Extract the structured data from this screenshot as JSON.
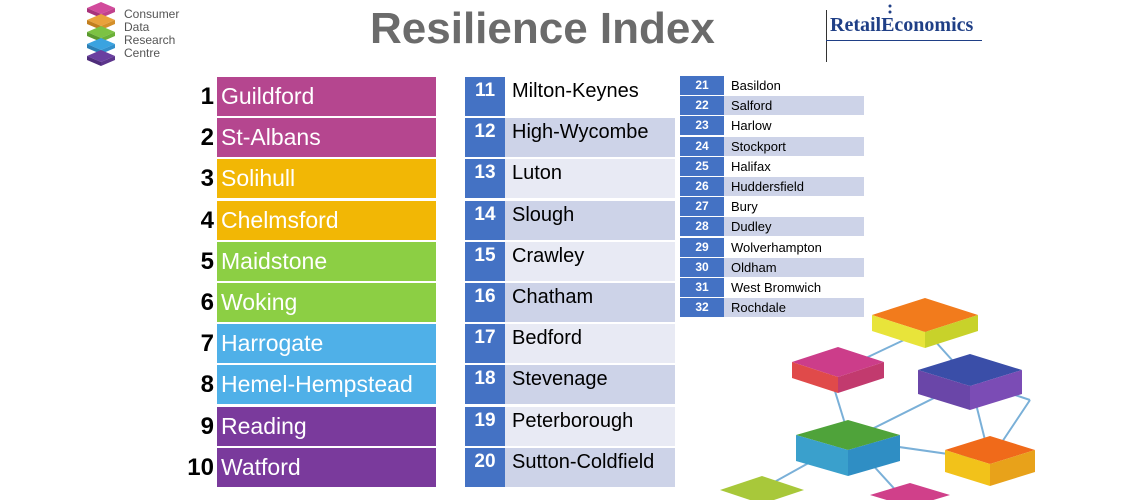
{
  "header": {
    "logo_lines": [
      "Consumer",
      "Data",
      "Research",
      "Centre"
    ],
    "title": "Resilience Index",
    "brand_name": "RetailEconomics"
  },
  "colors": {
    "magenta": "#b5468f",
    "yellow": "#f2b705",
    "green": "#8ccf44",
    "lightblue": "#4fb0e8",
    "purple": "#7a3a9c",
    "blue": "#4472c4",
    "rowlight": "#e8eaf4",
    "rowdark": "#cdd3e8"
  },
  "top_ten": [
    {
      "rank": "1",
      "name": "Guildford",
      "color": "#b5468f"
    },
    {
      "rank": "2",
      "name": "St-Albans",
      "color": "#b5468f"
    },
    {
      "rank": "3",
      "name": "Solihull",
      "color": "#f2b705"
    },
    {
      "rank": "4",
      "name": "Chelmsford",
      "color": "#f2b705"
    },
    {
      "rank": "5",
      "name": "Maidstone",
      "color": "#8ccf44"
    },
    {
      "rank": "6",
      "name": "Woking",
      "color": "#8ccf44"
    },
    {
      "rank": "7",
      "name": "Harrogate",
      "color": "#4fb0e8"
    },
    {
      "rank": "8",
      "name": "Hemel-Hempstead",
      "color": "#4fb0e8"
    },
    {
      "rank": "9",
      "name": "Reading",
      "color": "#7a3a9c"
    },
    {
      "rank": "10",
      "name": "Watford",
      "color": "#7a3a9c"
    }
  ],
  "next_ten": [
    {
      "rank": "11",
      "name": "Milton-Keynes"
    },
    {
      "rank": "12",
      "name": "High-Wycombe"
    },
    {
      "rank": "13",
      "name": "Luton"
    },
    {
      "rank": "14",
      "name": "Slough"
    },
    {
      "rank": "15",
      "name": "Crawley"
    },
    {
      "rank": "16",
      "name": "Chatham"
    },
    {
      "rank": "17",
      "name": "Bedford"
    },
    {
      "rank": "18",
      "name": "Stevenage"
    },
    {
      "rank": "19",
      "name": "Peterborough"
    },
    {
      "rank": "20",
      "name": "Sutton-Coldfield"
    }
  ],
  "remaining": [
    {
      "rank": "21",
      "name": "Basildon"
    },
    {
      "rank": "22",
      "name": "Salford"
    },
    {
      "rank": "23",
      "name": "Harlow"
    },
    {
      "rank": "24",
      "name": "Stockport"
    },
    {
      "rank": "25",
      "name": "Halifax"
    },
    {
      "rank": "26",
      "name": "Huddersfield"
    },
    {
      "rank": "27",
      "name": "Bury"
    },
    {
      "rank": "28",
      "name": "Dudley"
    },
    {
      "rank": "29",
      "name": "Wolverhampton"
    },
    {
      "rank": "30",
      "name": "Oldham"
    },
    {
      "rank": "31",
      "name": "West Bromwich"
    },
    {
      "rank": "32",
      "name": "Rochdale"
    }
  ]
}
